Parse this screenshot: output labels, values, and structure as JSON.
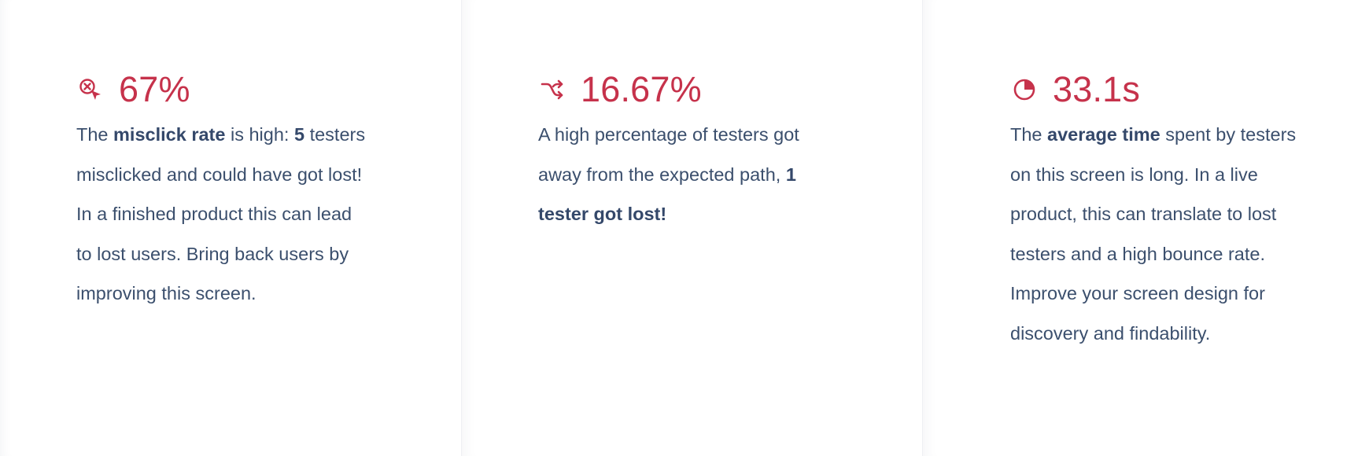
{
  "colors": {
    "accent": "#c6324b",
    "text": "#3b4f6d",
    "divider": "#eef0f3",
    "background": "#ffffff"
  },
  "cards": [
    {
      "icon": "misclick-cursor-icon",
      "value": "67%",
      "text": {
        "p1": "The ",
        "b1": "misclick rate",
        "p2": " is high: ",
        "b2": "5",
        "p3": " testers misclicked and could have got lost! In a finished product this can lead to lost users. Bring back users by improving this screen."
      }
    },
    {
      "icon": "shuffle-path-icon",
      "value": "16.67%",
      "text": {
        "p1": "A high percentage of testers got away from the expected path, ",
        "b1": "1 tester got lost!"
      }
    },
    {
      "icon": "pie-clock-icon",
      "value": "33.1s",
      "text": {
        "p1": "The ",
        "b1": "average time",
        "p2": " spent by testers on this screen is long. In a live product, this can translate to lost testers and a high bounce rate. Improve your screen design for discovery and findability."
      }
    }
  ]
}
